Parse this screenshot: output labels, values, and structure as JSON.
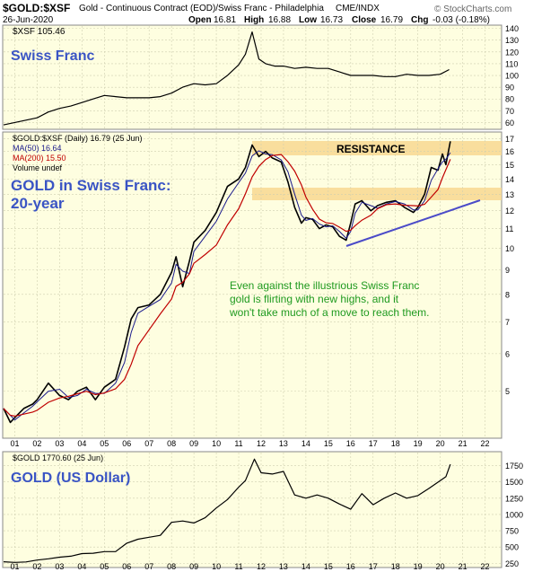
{
  "header": {
    "symbol": "$GOLD:$XSF",
    "description": "Gold - Continuous Contract (EOD)/Swiss Franc - Philadelphia",
    "exchange": "CME/INDX",
    "date": "26-Jun-2020",
    "open_label": "Open",
    "open": "16.81",
    "high_label": "High",
    "high": "16.88",
    "low_label": "Low",
    "low": "16.73",
    "close_label": "Close",
    "close": "16.79",
    "chg_label": "Chg",
    "chg": "-0.03 (-0.18%)",
    "watermark": "© StockCharts.com"
  },
  "colors": {
    "panel_bg": "#fefee0",
    "line": "#000000",
    "ma50": "#1a1a8c",
    "ma200": "#c00000",
    "resistance_band": "#f8d890",
    "annotation_text": "#1f9a1f",
    "title_blue": "#3a54c4",
    "trendline": "#4b4bc8"
  },
  "chart_data": [
    {
      "type": "line",
      "panel": "top",
      "legend": "$XSF 105.46",
      "label": "Swiss Franc",
      "ylim": [
        55,
        142
      ],
      "y_ticks": [
        60,
        70,
        80,
        90,
        100,
        110,
        120,
        130,
        140
      ],
      "x": [
        2000.5,
        2001,
        2001.5,
        2002,
        2002.5,
        2003,
        2003.5,
        2004,
        2004.5,
        2005,
        2005.5,
        2006,
        2006.5,
        2007,
        2007.5,
        2008,
        2008.5,
        2009,
        2009.5,
        2010,
        2010.5,
        2011,
        2011.3,
        2011.6,
        2011.9,
        2012.2,
        2012.6,
        2013,
        2013.5,
        2014,
        2014.5,
        2015,
        2015.5,
        2016,
        2016.5,
        2017,
        2017.5,
        2018,
        2018.5,
        2019,
        2019.5,
        2020,
        2020.4
      ],
      "values": [
        58,
        60,
        62,
        64,
        69,
        72,
        74,
        77,
        80,
        83,
        82,
        81,
        81,
        81,
        82,
        85,
        90,
        93,
        92,
        93,
        100,
        109,
        118,
        137,
        114,
        110,
        108,
        108,
        106,
        107,
        106,
        106,
        103,
        100,
        100,
        100,
        99,
        99,
        101,
        100,
        100,
        101,
        105
      ]
    },
    {
      "type": "line",
      "panel": "middle",
      "legend": [
        "$GOLD:$XSF (Daily) 16.79 (25 Jun)",
        "MA(50) 16.64",
        "MA(200) 15.50",
        "Volume undef"
      ],
      "label": [
        "GOLD in Swiss Franc:",
        "20-year"
      ],
      "scale": "log",
      "ylim": [
        4.0,
        17.5
      ],
      "y_ticks": [
        5,
        6,
        7,
        8,
        9,
        10,
        11,
        12,
        13,
        14,
        15,
        16,
        17
      ],
      "x_ticks": [
        "01",
        "02",
        "03",
        "04",
        "05",
        "06",
        "07",
        "08",
        "09",
        "10",
        "11",
        "12",
        "13",
        "14",
        "15",
        "16",
        "17",
        "18",
        "19",
        "20",
        "21",
        "22"
      ],
      "x": [
        2000.5,
        2000.8,
        2001.0,
        2001.4,
        2001.8,
        2002.0,
        2002.5,
        2003.0,
        2003.4,
        2003.8,
        2004.2,
        2004.6,
        2005.0,
        2005.5,
        2005.9,
        2006.2,
        2006.5,
        2007.0,
        2007.5,
        2008.0,
        2008.2,
        2008.5,
        2008.8,
        2009.0,
        2009.5,
        2010.0,
        2010.5,
        2011.0,
        2011.3,
        2011.6,
        2011.9,
        2012.2,
        2012.5,
        2012.9,
        2013.2,
        2013.5,
        2013.8,
        2014.0,
        2014.3,
        2014.6,
        2014.9,
        2015.2,
        2015.5,
        2015.8,
        2016.0,
        2016.2,
        2016.5,
        2016.9,
        2017.2,
        2017.6,
        2018.0,
        2018.4,
        2018.8,
        2019.0,
        2019.3,
        2019.6,
        2019.9,
        2020.1,
        2020.25,
        2020.45
      ],
      "values": [
        4.6,
        4.3,
        4.4,
        4.6,
        4.7,
        4.8,
        5.2,
        4.9,
        4.8,
        5.0,
        5.1,
        4.8,
        5.1,
        5.3,
        6.2,
        7.1,
        7.5,
        7.6,
        8.0,
        8.9,
        9.6,
        8.3,
        9.4,
        10.3,
        10.9,
        11.9,
        13.5,
        14.0,
        14.8,
        16.5,
        15.6,
        16.0,
        15.5,
        15.2,
        13.8,
        12.2,
        11.3,
        11.6,
        11.5,
        11.0,
        11.2,
        11.1,
        10.6,
        10.4,
        11.3,
        12.4,
        12.6,
        12.0,
        12.3,
        12.5,
        12.6,
        12.2,
        11.9,
        12.2,
        13.0,
        14.8,
        14.6,
        15.8,
        15.0,
        16.8
      ],
      "annotations": {
        "resistance_label": "RESISTANCE",
        "comment": [
          "Even against the illustrious Swiss Franc",
          "gold is flirting with new highs, and it",
          "won't take much of a move to reach them."
        ]
      }
    },
    {
      "type": "line",
      "panel": "bottom",
      "legend": "$GOLD 1770.60 (25 Jun)",
      "label": "GOLD (US Dollar)",
      "ylim": [
        200,
        1950
      ],
      "y_ticks": [
        250,
        500,
        750,
        1000,
        1250,
        1500,
        1750
      ],
      "x": [
        2000.5,
        2001,
        2001.5,
        2002,
        2002.5,
        2003,
        2003.5,
        2004,
        2004.5,
        2005,
        2005.5,
        2006,
        2006.5,
        2007,
        2007.5,
        2008,
        2008.5,
        2009,
        2009.5,
        2010,
        2010.5,
        2011,
        2011.3,
        2011.7,
        2012.0,
        2012.5,
        2013.0,
        2013.5,
        2014.0,
        2014.5,
        2015.0,
        2015.5,
        2016.0,
        2016.5,
        2017.0,
        2017.5,
        2018.0,
        2018.5,
        2019.0,
        2019.5,
        2020.0,
        2020.25,
        2020.45
      ],
      "values": [
        275,
        265,
        272,
        300,
        320,
        345,
        360,
        400,
        405,
        430,
        430,
        560,
        620,
        650,
        680,
        880,
        900,
        870,
        950,
        1100,
        1230,
        1420,
        1520,
        1850,
        1640,
        1620,
        1660,
        1300,
        1250,
        1300,
        1250,
        1160,
        1080,
        1320,
        1150,
        1250,
        1330,
        1250,
        1290,
        1400,
        1520,
        1580,
        1770
      ]
    }
  ]
}
